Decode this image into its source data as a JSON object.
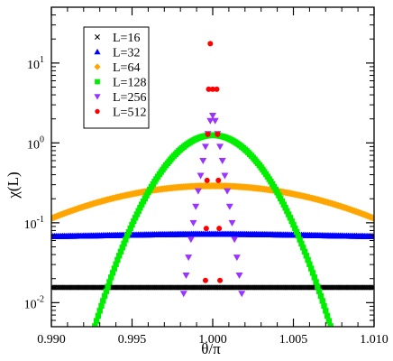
{
  "chart_data": {
    "type": "scatter",
    "xlabel": "θ/π",
    "ylabel": "χ(L)",
    "xlim": [
      0.99,
      1.01
    ],
    "ylim": [
      0.005,
      50
    ],
    "yscale": "log",
    "grid": false,
    "legend_position": "top-left",
    "x_ticks": [
      {
        "value": 0.99,
        "label": "0.990"
      },
      {
        "value": 0.995,
        "label": "0.995"
      },
      {
        "value": 1.0,
        "label": "1.000"
      },
      {
        "value": 1.005,
        "label": "1.005"
      },
      {
        "value": 1.01,
        "label": "1.010"
      }
    ],
    "y_ticks": [
      {
        "value": 0.01,
        "base": "10",
        "exp": "-2"
      },
      {
        "value": 0.1,
        "base": "10",
        "exp": "-1"
      },
      {
        "value": 1,
        "base": "10",
        "exp": "0"
      },
      {
        "value": 10,
        "base": "10",
        "exp": "1"
      }
    ],
    "series": [
      {
        "name": "L=16",
        "marker": "x",
        "color": "#000000",
        "curve": "flat",
        "peak": 0.0155,
        "x_step": 0.0001
      },
      {
        "name": "L=32",
        "marker": "triangle",
        "color": "#0000ff",
        "curve": "flat",
        "peak": 0.072,
        "edge": 0.066,
        "x_step": 0.0001
      },
      {
        "name": "L=64",
        "marker": "diamond",
        "color": "#ffa500",
        "curve": "peak",
        "peak": 0.29,
        "width": 0.0073,
        "x_step": 0.0001
      },
      {
        "name": "L=128",
        "marker": "square",
        "color": "#00ee00",
        "curve": "peak",
        "peak": 1.25,
        "width": 0.0022,
        "x_step": 0.0001
      },
      {
        "name": "L=256",
        "marker": "triangle-down",
        "color": "#9933ff",
        "points": [
          [
            0.9982,
            0.013
          ],
          [
            0.99835,
            0.022
          ],
          [
            0.9985,
            0.037
          ],
          [
            0.99865,
            0.062
          ],
          [
            0.9988,
            0.1
          ],
          [
            0.99895,
            0.16
          ],
          [
            0.9991,
            0.25
          ],
          [
            0.99925,
            0.39
          ],
          [
            0.9994,
            0.6
          ],
          [
            0.99955,
            0.9
          ],
          [
            0.9997,
            1.3
          ],
          [
            0.99985,
            1.9
          ],
          [
            1.0,
            2.2
          ],
          [
            1.00015,
            1.9
          ],
          [
            1.0003,
            1.3
          ],
          [
            1.00045,
            0.9
          ],
          [
            1.0006,
            0.6
          ],
          [
            1.00075,
            0.39
          ],
          [
            1.0009,
            0.25
          ],
          [
            1.00105,
            0.16
          ],
          [
            1.0012,
            0.1
          ],
          [
            1.00135,
            0.062
          ],
          [
            1.0015,
            0.037
          ],
          [
            1.00165,
            0.022
          ],
          [
            1.0018,
            0.013
          ]
        ]
      },
      {
        "name": "L=512",
        "marker": "circle",
        "color": "#ff0000",
        "points": [
          [
            0.99985,
            17.5
          ],
          [
            0.99975,
            4.7
          ],
          [
            1.0,
            4.7
          ],
          [
            1.00025,
            4.7
          ],
          [
            0.9997,
            1.28
          ],
          [
            1.0003,
            1.28
          ],
          [
            0.99965,
            0.34
          ],
          [
            1.00035,
            0.34
          ],
          [
            0.9996,
            0.085
          ],
          [
            1.0004,
            0.085
          ],
          [
            0.99955,
            0.019
          ],
          [
            1.00045,
            0.019
          ]
        ]
      }
    ]
  }
}
